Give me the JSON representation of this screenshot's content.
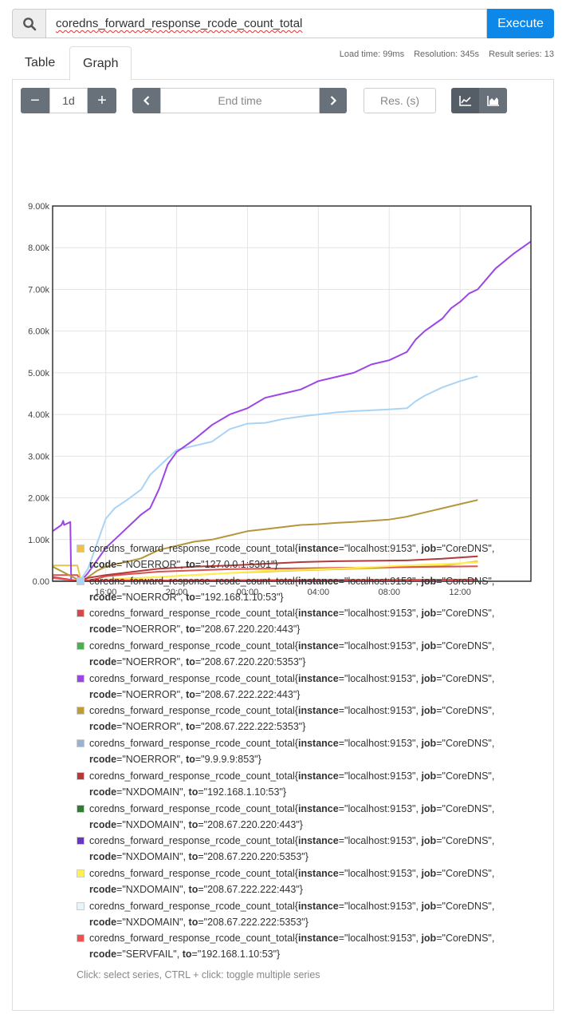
{
  "query": {
    "expression": "coredns_forward_response_rcode_count_total",
    "execute_label": "Execute",
    "search_icon": "search-icon"
  },
  "tabs": [
    {
      "label": "Table",
      "active": false
    },
    {
      "label": "Graph",
      "active": true
    }
  ],
  "stats": {
    "load_time": "Load time: 99ms",
    "resolution": "Resolution: 345s",
    "result_series": "Result series: 13"
  },
  "controls": {
    "range_minus": "−",
    "range_value": "1d",
    "range_plus": "+",
    "back_icon": "chevron-left-icon",
    "end_time_placeholder": "End time",
    "forward_icon": "chevron-right-icon",
    "resolution_placeholder": "Res. (s)",
    "line_icon": "line-chart-icon",
    "stacked_icon": "area-chart-icon"
  },
  "chart_data": {
    "type": "line",
    "ylim": [
      0,
      9000
    ],
    "y_ticks": [
      "0.00",
      "1.00k",
      "2.00k",
      "3.00k",
      "4.00k",
      "5.00k",
      "6.00k",
      "7.00k",
      "8.00k",
      "9.00k"
    ],
    "x_ticks": [
      "16:00",
      "20:00",
      "00:00",
      "04:00",
      "08:00",
      "12:00"
    ],
    "grid": true,
    "series": [
      {
        "color": "#e8c44a",
        "points": [
          [
            0,
            380
          ],
          [
            1.4,
            380
          ],
          [
            1.6,
            0
          ],
          [
            3,
            40
          ],
          [
            6,
            100
          ],
          [
            10,
            200
          ],
          [
            14,
            260
          ],
          [
            18,
            310
          ],
          [
            22,
            370
          ],
          [
            24,
            480
          ]
        ]
      },
      {
        "color": "#a9d4f5",
        "points": [
          [
            1.6,
            50
          ],
          [
            2,
            300
          ],
          [
            2.5,
            900
          ],
          [
            3,
            1500
          ],
          [
            3.5,
            1750
          ],
          [
            4.2,
            1950
          ],
          [
            5,
            2200
          ],
          [
            5.5,
            2550
          ],
          [
            6.5,
            2950
          ],
          [
            7,
            3150
          ],
          [
            8,
            3250
          ],
          [
            9,
            3350
          ],
          [
            10,
            3650
          ],
          [
            11,
            3780
          ],
          [
            12,
            3800
          ],
          [
            13,
            3890
          ],
          [
            14,
            3950
          ],
          [
            15,
            4000
          ],
          [
            16,
            4050
          ],
          [
            17,
            4080
          ],
          [
            18,
            4100
          ],
          [
            19,
            4120
          ],
          [
            20,
            4150
          ],
          [
            20.5,
            4320
          ],
          [
            21,
            4450
          ],
          [
            22,
            4650
          ],
          [
            23,
            4800
          ],
          [
            24,
            4920
          ]
        ]
      },
      {
        "color": "#d9534f",
        "points": [
          [
            0,
            150
          ],
          [
            1.4,
            150
          ],
          [
            1.6,
            0
          ],
          [
            2,
            20
          ],
          [
            2.5,
            60
          ],
          [
            3,
            120
          ],
          [
            4,
            160
          ],
          [
            6,
            230
          ],
          [
            8,
            260
          ],
          [
            10,
            290
          ],
          [
            12,
            300
          ],
          [
            14,
            310
          ],
          [
            16,
            320
          ],
          [
            18,
            330
          ],
          [
            20,
            340
          ],
          [
            22,
            350
          ],
          [
            24,
            360
          ]
        ]
      },
      {
        "color": "#3fa14a",
        "points": [
          [
            0,
            10
          ],
          [
            24,
            10
          ]
        ]
      },
      {
        "color": "#9b45e6",
        "points": [
          [
            0,
            1200
          ],
          [
            0.5,
            1350
          ],
          [
            0.6,
            1450
          ],
          [
            0.65,
            1350
          ],
          [
            0.8,
            1380
          ],
          [
            0.9,
            1400
          ],
          [
            1.0,
            1420
          ],
          [
            1.05,
            0
          ],
          [
            1.6,
            0
          ],
          [
            2,
            200
          ],
          [
            2.5,
            500
          ],
          [
            3,
            800
          ],
          [
            3.5,
            1000
          ],
          [
            4,
            1200
          ],
          [
            4.5,
            1400
          ],
          [
            5,
            1600
          ],
          [
            5.5,
            1750
          ],
          [
            6,
            2200
          ],
          [
            6.5,
            2800
          ],
          [
            7,
            3100
          ],
          [
            7.5,
            3250
          ],
          [
            8,
            3400
          ],
          [
            9,
            3750
          ],
          [
            10,
            4000
          ],
          [
            11,
            4150
          ],
          [
            12,
            4400
          ],
          [
            13,
            4500
          ],
          [
            14,
            4600
          ],
          [
            14.5,
            4700
          ],
          [
            15,
            4800
          ],
          [
            16,
            4900
          ],
          [
            17,
            5000
          ],
          [
            18,
            5200
          ],
          [
            19,
            5300
          ],
          [
            20,
            5500
          ],
          [
            20.5,
            5800
          ],
          [
            21,
            6000
          ],
          [
            22,
            6300
          ],
          [
            22.5,
            6550
          ],
          [
            23,
            6700
          ],
          [
            23.5,
            6900
          ],
          [
            24,
            7000
          ],
          [
            25,
            7500
          ],
          [
            26,
            7850
          ],
          [
            27,
            8150
          ]
        ]
      },
      {
        "color": "#b5963a",
        "points": [
          [
            0,
            350
          ],
          [
            1.6,
            0
          ],
          [
            2,
            100
          ],
          [
            2.5,
            250
          ],
          [
            3,
            350
          ],
          [
            4,
            450
          ],
          [
            5,
            550
          ],
          [
            6,
            750
          ],
          [
            7,
            850
          ],
          [
            8,
            950
          ],
          [
            9,
            1000
          ],
          [
            10,
            1100
          ],
          [
            11,
            1200
          ],
          [
            12,
            1250
          ],
          [
            13,
            1300
          ],
          [
            14,
            1350
          ],
          [
            15,
            1370
          ],
          [
            16,
            1400
          ],
          [
            17,
            1420
          ],
          [
            18,
            1450
          ],
          [
            19,
            1480
          ],
          [
            20,
            1550
          ],
          [
            21,
            1650
          ],
          [
            22,
            1750
          ],
          [
            23,
            1850
          ],
          [
            24,
            1950
          ]
        ]
      },
      {
        "color": "#8ca8c8",
        "points": [
          [
            0,
            10
          ],
          [
            24,
            10
          ]
        ]
      },
      {
        "color": "#b23a3a",
        "points": [
          [
            0,
            100
          ],
          [
            1.6,
            0
          ],
          [
            2,
            80
          ],
          [
            3,
            150
          ],
          [
            4,
            200
          ],
          [
            5,
            250
          ],
          [
            6,
            300
          ],
          [
            8,
            350
          ],
          [
            10,
            380
          ],
          [
            12,
            420
          ],
          [
            14,
            460
          ],
          [
            16,
            480
          ],
          [
            18,
            490
          ],
          [
            20,
            500
          ],
          [
            22,
            540
          ],
          [
            24,
            600
          ]
        ]
      },
      {
        "color": "#2e7d32",
        "points": [
          [
            0,
            5
          ],
          [
            24,
            5
          ]
        ]
      },
      {
        "color": "#5b2ca0",
        "points": [
          [
            0,
            5
          ],
          [
            24,
            5
          ]
        ]
      },
      {
        "color": "#fff04d",
        "points": [
          [
            1.6,
            0
          ],
          [
            4,
            50
          ],
          [
            8,
            150
          ],
          [
            12,
            250
          ],
          [
            16,
            300
          ],
          [
            20,
            380
          ],
          [
            24,
            450
          ]
        ]
      },
      {
        "color": "#e6f4fb",
        "points": [
          [
            0,
            5
          ],
          [
            24,
            5
          ]
        ]
      },
      {
        "color": "#f05050",
        "points": [
          [
            0,
            80
          ],
          [
            1.6,
            0
          ],
          [
            2,
            20
          ],
          [
            24,
            40
          ]
        ]
      }
    ]
  },
  "legend": [
    {
      "color": "#f0c24b",
      "metric": "coredns_forward_response_rcode_count_total{",
      "instance": "\"localhost:9153\"",
      "job": "\"CoreDNS\"",
      "rcode": "\"NOERROR\"",
      "to": "\"127.0.0.1:5301\""
    },
    {
      "color": "#a9d4f5",
      "metric": "coredns_forward_response_rcode_count_total{",
      "instance": "\"localhost:9153\"",
      "job": "\"CoreDNS\"",
      "rcode": "\"NOERROR\"",
      "to": "\"192.168.1.10:53\""
    },
    {
      "color": "#d24a4a",
      "metric": "coredns_forward_response_rcode_count_total{",
      "instance": "\"localhost:9153\"",
      "job": "\"CoreDNS\"",
      "rcode": "\"NOERROR\"",
      "to": "\"208.67.220.220:443\""
    },
    {
      "color": "#4caf50",
      "metric": "coredns_forward_response_rcode_count_total{",
      "instance": "\"localhost:9153\"",
      "job": "\"CoreDNS\"",
      "rcode": "\"NOERROR\"",
      "to": "\"208.67.220.220:5353\""
    },
    {
      "color": "#9b45e6",
      "metric": "coredns_forward_response_rcode_count_total{",
      "instance": "\"localhost:9153\"",
      "job": "\"CoreDNS\"",
      "rcode": "\"NOERROR\"",
      "to": "\"208.67.222.222:443\""
    },
    {
      "color": "#c19a3a",
      "metric": "coredns_forward_response_rcode_count_total{",
      "instance": "\"localhost:9153\"",
      "job": "\"CoreDNS\"",
      "rcode": "\"NOERROR\"",
      "to": "\"208.67.222.222:5353\""
    },
    {
      "color": "#9ab2cf",
      "metric": "coredns_forward_response_rcode_count_total{",
      "instance": "\"localhost:9153\"",
      "job": "\"CoreDNS\"",
      "rcode": "\"NOERROR\"",
      "to": "\"9.9.9.9:853\""
    },
    {
      "color": "#b23a3a",
      "metric": "coredns_forward_response_rcode_count_total{",
      "instance": "\"localhost:9153\"",
      "job": "\"CoreDNS\"",
      "rcode": "\"NXDOMAIN\"",
      "to": "\"192.168.1.10:53\""
    },
    {
      "color": "#2e7d32",
      "metric": "coredns_forward_response_rcode_count_total{",
      "instance": "\"localhost:9153\"",
      "job": "\"CoreDNS\"",
      "rcode": "\"NXDOMAIN\"",
      "to": "\"208.67.220.220:443\""
    },
    {
      "color": "#6a35c0",
      "metric": "coredns_forward_response_rcode_count_total{",
      "instance": "\"localhost:9153\"",
      "job": "\"CoreDNS\"",
      "rcode": "\"NXDOMAIN\"",
      "to": "\"208.67.220.220:5353\""
    },
    {
      "color": "#fff04d",
      "metric": "coredns_forward_response_rcode_count_total{",
      "instance": "\"localhost:9153\"",
      "job": "\"CoreDNS\"",
      "rcode": "\"NXDOMAIN\"",
      "to": "\"208.67.222.222:443\""
    },
    {
      "color": "#e6f4fb",
      "metric": "coredns_forward_response_rcode_count_total{",
      "instance": "\"localhost:9153\"",
      "job": "\"CoreDNS\"",
      "rcode": "\"NXDOMAIN\"",
      "to": "\"208.67.222.222:5353\""
    },
    {
      "color": "#f05050",
      "metric": "coredns_forward_response_rcode_count_total{",
      "instance": "\"localhost:9153\"",
      "job": "\"CoreDNS\"",
      "rcode": "\"SERVFAIL\"",
      "to": "\"192.168.1.10:53\""
    }
  ],
  "hint": "Click: select series, CTRL + click: toggle multiple series"
}
